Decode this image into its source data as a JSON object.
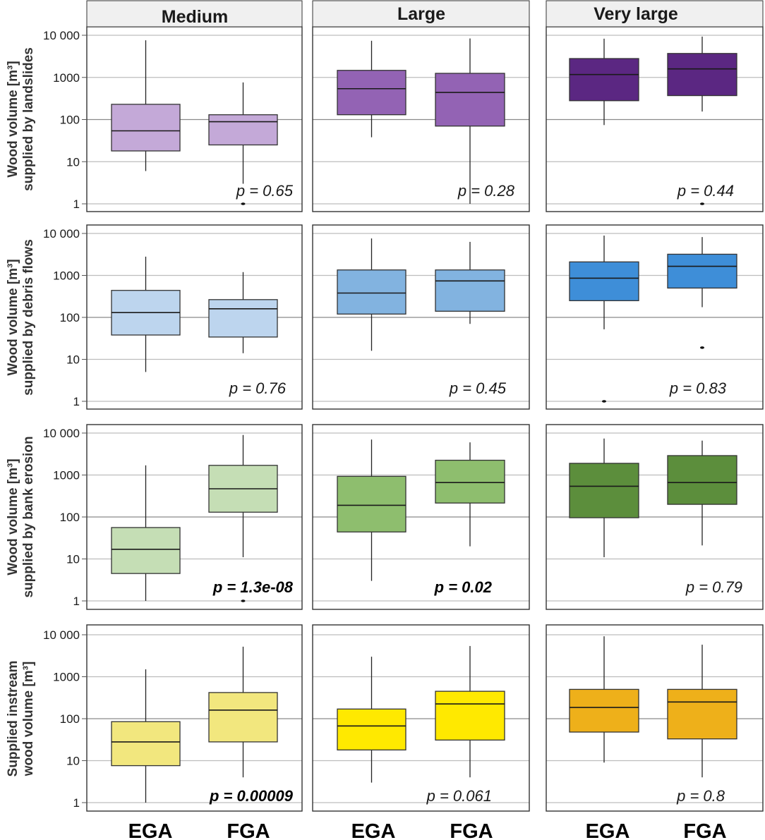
{
  "chart_data": {
    "type": "boxplot",
    "title": "",
    "scale": "log10",
    "ylim": [
      1,
      10000
    ],
    "grid": true,
    "yticks": [
      1,
      10,
      100,
      1000,
      10000
    ],
    "ytick_labels": [
      "1",
      "10",
      "100",
      "1000",
      "10 000"
    ],
    "columns": [
      "Medium",
      "Large",
      "Very large"
    ],
    "categories": [
      "EGA",
      "FGA"
    ],
    "rows": [
      {
        "ylabel_line1": "Wood volume [m³]",
        "ylabel_line2": "supplied by landslides",
        "panels": [
          {
            "column": "Medium",
            "color": "#c4a9d8",
            "p_value": "p = 0.65",
            "p_bold": false,
            "boxes": [
              {
                "group": "EGA",
                "whisker_low": 6,
                "q1": 18,
                "median": 54,
                "q3": 230,
                "whisker_high": 7600,
                "outliers": []
              },
              {
                "group": "FGA",
                "whisker_low": 3,
                "q1": 25,
                "median": 89,
                "q3": 130,
                "whisker_high": 760,
                "outliers": [
                  1
                ]
              }
            ]
          },
          {
            "column": "Large",
            "color": "#9363b4",
            "p_value": "p = 0.28",
            "p_bold": false,
            "boxes": [
              {
                "group": "EGA",
                "whisker_low": 38,
                "q1": 130,
                "median": 540,
                "q3": 1470,
                "whisker_high": 7400,
                "outliers": []
              },
              {
                "group": "FGA",
                "whisker_low": 1,
                "q1": 70,
                "median": 440,
                "q3": 1250,
                "whisker_high": 8400,
                "outliers": []
              }
            ]
          },
          {
            "column": "Very large",
            "color": "#5b2782",
            "p_value": "p = 0.44",
            "p_bold": false,
            "boxes": [
              {
                "group": "EGA",
                "whisker_low": 74,
                "q1": 280,
                "median": 1170,
                "q3": 2800,
                "whisker_high": 8300,
                "outliers": []
              },
              {
                "group": "FGA",
                "whisker_low": 155,
                "q1": 370,
                "median": 1590,
                "q3": 3700,
                "whisker_high": 9300,
                "outliers": [
                  1
                ]
              }
            ]
          }
        ]
      },
      {
        "ylabel_line1": "Wood volume [m³]",
        "ylabel_line2": "supplied by debris flows",
        "panels": [
          {
            "column": "Medium",
            "color": "#bdd5ee",
            "p_value": "p = 0.76",
            "p_bold": false,
            "boxes": [
              {
                "group": "EGA",
                "whisker_low": 5,
                "q1": 38,
                "median": 130,
                "q3": 440,
                "whisker_high": 2800,
                "outliers": []
              },
              {
                "group": "FGA",
                "whisker_low": 14,
                "q1": 34,
                "median": 160,
                "q3": 265,
                "whisker_high": 1200,
                "outliers": []
              }
            ]
          },
          {
            "column": "Large",
            "color": "#82b3e0",
            "p_value": "p = 0.45",
            "p_bold": false,
            "boxes": [
              {
                "group": "EGA",
                "whisker_low": 16,
                "q1": 120,
                "median": 380,
                "q3": 1350,
                "whisker_high": 7600,
                "outliers": []
              },
              {
                "group": "FGA",
                "whisker_low": 70,
                "q1": 140,
                "median": 740,
                "q3": 1350,
                "whisker_high": 6300,
                "outliers": []
              }
            ]
          },
          {
            "column": "Very large",
            "color": "#3e8ed8",
            "p_value": "p = 0.83",
            "p_bold": false,
            "boxes": [
              {
                "group": "EGA",
                "whisker_low": 52,
                "q1": 250,
                "median": 860,
                "q3": 2100,
                "whisker_high": 8900,
                "outliers": [
                  1
                ]
              },
              {
                "group": "FGA",
                "whisker_low": 175,
                "q1": 500,
                "median": 1650,
                "q3": 3200,
                "whisker_high": 8200,
                "outliers": [
                  19
                ]
              }
            ]
          }
        ]
      },
      {
        "ylabel_line1": "Wood volume [m³]",
        "ylabel_line2": "supplied by bank erosion",
        "panels": [
          {
            "column": "Medium",
            "color": "#c5deb5",
            "p_value": "p = 1.3e-08",
            "p_bold": true,
            "boxes": [
              {
                "group": "EGA",
                "whisker_low": 1,
                "q1": 4.5,
                "median": 17,
                "q3": 56,
                "whisker_high": 1700,
                "outliers": []
              },
              {
                "group": "FGA",
                "whisker_low": 11,
                "q1": 130,
                "median": 470,
                "q3": 1700,
                "whisker_high": 9000,
                "outliers": [
                  1
                ]
              }
            ]
          },
          {
            "column": "Large",
            "color": "#8ebe6e",
            "p_value": "p = 0.02",
            "p_bold": true,
            "boxes": [
              {
                "group": "EGA",
                "whisker_low": 3,
                "q1": 44,
                "median": 190,
                "q3": 930,
                "whisker_high": 7000,
                "outliers": []
              },
              {
                "group": "FGA",
                "whisker_low": 20,
                "q1": 215,
                "median": 660,
                "q3": 2250,
                "whisker_high": 6000,
                "outliers": []
              }
            ]
          },
          {
            "column": "Very large",
            "color": "#5c8e3c",
            "p_value": "p = 0.79",
            "p_bold": false,
            "boxes": [
              {
                "group": "EGA",
                "whisker_low": 11,
                "q1": 96,
                "median": 540,
                "q3": 1900,
                "whisker_high": 7400,
                "outliers": []
              },
              {
                "group": "FGA",
                "whisker_low": 21,
                "q1": 200,
                "median": 660,
                "q3": 2900,
                "whisker_high": 6600,
                "outliers": []
              }
            ]
          }
        ]
      },
      {
        "ylabel_line1": "Supplied instream",
        "ylabel_line2": "wood volume [m³]",
        "panels": [
          {
            "column": "Medium",
            "color": "#f2e77e",
            "p_value": "p = 0.00009",
            "p_bold": true,
            "boxes": [
              {
                "group": "EGA",
                "whisker_low": 1,
                "q1": 7.6,
                "median": 28,
                "q3": 85,
                "whisker_high": 1500,
                "outliers": []
              },
              {
                "group": "FGA",
                "whisker_low": 4,
                "q1": 28,
                "median": 160,
                "q3": 420,
                "whisker_high": 5200,
                "outliers": []
              }
            ]
          },
          {
            "column": "Large",
            "color": "#ffe900",
            "p_value": "p = 0.061",
            "p_bold": false,
            "boxes": [
              {
                "group": "EGA",
                "whisker_low": 3,
                "q1": 18,
                "median": 67,
                "q3": 170,
                "whisker_high": 3000,
                "outliers": []
              },
              {
                "group": "FGA",
                "whisker_low": 4,
                "q1": 31,
                "median": 225,
                "q3": 450,
                "whisker_high": 5400,
                "outliers": []
              }
            ]
          },
          {
            "column": "Very large",
            "color": "#eeb01a",
            "p_value": "p = 0.8",
            "p_bold": false,
            "boxes": [
              {
                "group": "EGA",
                "whisker_low": 9,
                "q1": 48,
                "median": 185,
                "q3": 500,
                "whisker_high": 9200,
                "outliers": []
              },
              {
                "group": "FGA",
                "whisker_low": 4,
                "q1": 33,
                "median": 250,
                "q3": 500,
                "whisker_high": 5800,
                "outliers": []
              }
            ]
          }
        ]
      }
    ]
  }
}
